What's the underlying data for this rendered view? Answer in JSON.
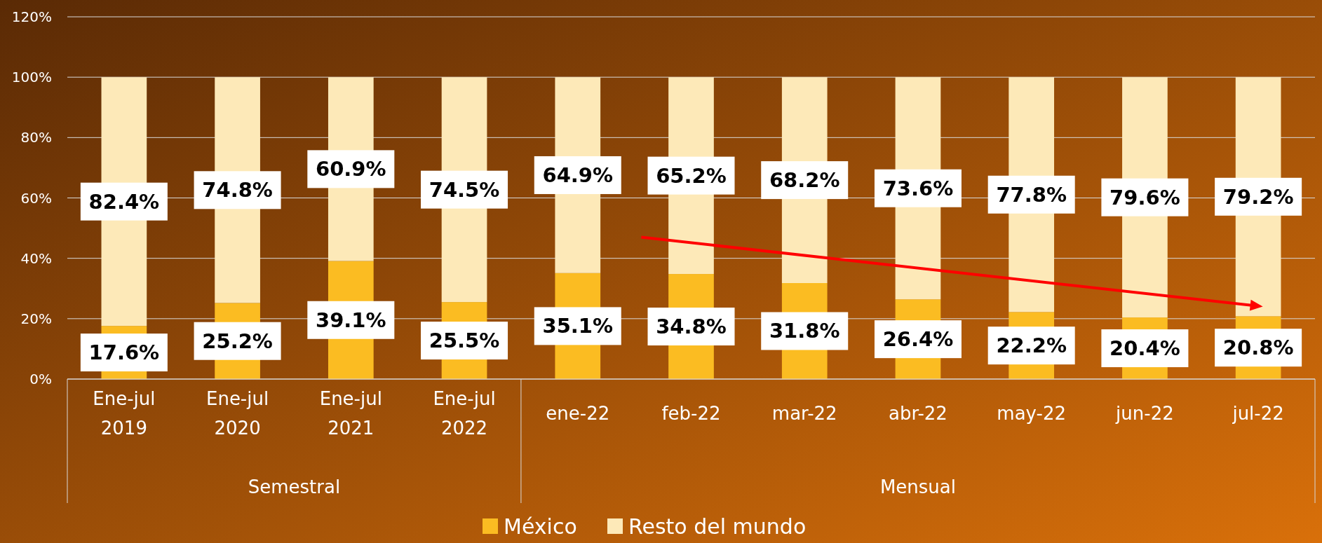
{
  "chart_data": {
    "type": "bar",
    "stacked": true,
    "categories": [
      "Ene-jul\n2019",
      "Ene-jul\n2020",
      "Ene-jul\n2021",
      "Ene-jul\n2022",
      "ene-22",
      "feb-22",
      "mar-22",
      "abr-22",
      "may-22",
      "jun-22",
      "jul-22"
    ],
    "series": [
      {
        "name": "México",
        "color": "#fbbc22",
        "values": [
          17.6,
          25.2,
          39.1,
          25.5,
          35.1,
          34.8,
          31.8,
          26.4,
          22.2,
          20.4,
          20.8
        ],
        "value_labels": [
          "17.6%",
          "25.2%",
          "39.1%",
          "25.5%",
          "35.1%",
          "34.8%",
          "31.8%",
          "26.4%",
          "22.2%",
          "20.4%",
          "20.8%"
        ]
      },
      {
        "name": "Resto del mundo",
        "color": "#fde9b8",
        "values": [
          82.4,
          74.8,
          60.9,
          74.5,
          64.9,
          65.2,
          68.2,
          73.6,
          77.8,
          79.6,
          79.2
        ],
        "value_labels": [
          "82.4%",
          "74.8%",
          "60.9%",
          "74.5%",
          "64.9%",
          "65.2%",
          "68.2%",
          "73.6%",
          "77.8%",
          "79.6%",
          "79.2%"
        ]
      }
    ],
    "annotations": [
      "Semestral",
      "Mensual"
    ],
    "ylim": [
      0,
      120
    ],
    "yticks": [
      {
        "value": 0,
        "label": "0%"
      },
      {
        "value": 20,
        "label": "20%"
      },
      {
        "value": 40,
        "label": "40%"
      },
      {
        "value": 60,
        "label": "60%"
      },
      {
        "value": 80,
        "label": "80%"
      },
      {
        "value": 100,
        "label": "100%"
      },
      {
        "value": 120,
        "label": "120%"
      }
    ],
    "grid": "y",
    "legend": "bottom"
  }
}
